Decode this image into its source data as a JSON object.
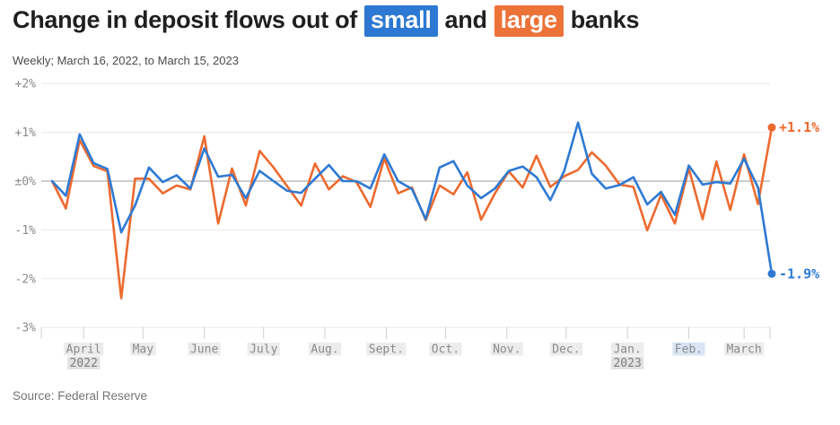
{
  "header": {
    "title_prefix": "Change in deposit flows out of",
    "chip_small": "small",
    "title_mid": "and",
    "chip_large": "large",
    "title_suffix": "banks",
    "subtitle": "Weekly; March 16, 2022, to March 15, 2023"
  },
  "source": "Source: Federal Reserve",
  "colors": {
    "small_line": "#2e7ad3",
    "large_line": "#ed6a2f",
    "small_chip": "#2d78d2",
    "large_chip": "#ec7238",
    "grid": "#e8e8e8",
    "zero_line": "#9b9b9b",
    "tick": "#cfcfcf",
    "axis_text": "#8a8a8a",
    "month_label_bg": "#ececec",
    "year_label_bg": "#e2e2e2"
  },
  "chart_data": {
    "type": "line",
    "title": "Change in deposit flows out of small and large banks",
    "subtitle": "Weekly; March 16, 2022, to March 15, 2023",
    "x_start_date": "2022-03-16",
    "x_end_date": "2023-03-15",
    "x_step_days": 7,
    "grid": true,
    "ylim": [
      -3,
      2
    ],
    "y_unit": "%",
    "y_ticks": [
      {
        "v": 2,
        "label": "+2%"
      },
      {
        "v": 1,
        "label": "+1%"
      },
      {
        "v": 0,
        "label": "±0%"
      },
      {
        "v": -1,
        "label": "-1%"
      },
      {
        "v": -2,
        "label": "-2%"
      },
      {
        "v": -3,
        "label": "-3%"
      }
    ],
    "x_ticks": [
      {
        "date": "2022-04-01",
        "label": "April",
        "year": "2022"
      },
      {
        "date": "2022-05-01",
        "label": "May"
      },
      {
        "date": "2022-06-01",
        "label": "June"
      },
      {
        "date": "2022-07-01",
        "label": "July"
      },
      {
        "date": "2022-08-01",
        "label": "Aug."
      },
      {
        "date": "2022-09-01",
        "label": "Sept."
      },
      {
        "date": "2022-10-01",
        "label": "Oct."
      },
      {
        "date": "2022-11-01",
        "label": "Nov."
      },
      {
        "date": "2022-12-01",
        "label": "Dec."
      },
      {
        "date": "2023-01-01",
        "label": "Jan.",
        "year": "2023"
      },
      {
        "date": "2023-02-01",
        "label": "Feb.",
        "bg": "#d9e5f5"
      },
      {
        "date": "2023-03-01",
        "label": "March"
      }
    ],
    "series": [
      {
        "name": "small banks",
        "color_key": "small_line",
        "end_label": "-1.9%",
        "values": [
          0.0,
          -0.3,
          0.96,
          0.37,
          0.25,
          -1.05,
          -0.5,
          0.28,
          -0.02,
          0.12,
          -0.15,
          0.67,
          0.09,
          0.13,
          -0.35,
          0.21,
          0.0,
          -0.2,
          -0.24,
          0.05,
          0.33,
          0.0,
          0.0,
          -0.15,
          0.55,
          0.0,
          -0.16,
          -0.78,
          0.28,
          0.41,
          -0.09,
          -0.35,
          -0.15,
          0.21,
          0.3,
          0.08,
          -0.39,
          0.21,
          1.2,
          0.15,
          -0.15,
          -0.08,
          0.08,
          -0.48,
          -0.22,
          -0.69,
          0.32,
          -0.07,
          -0.02,
          -0.05,
          0.46,
          -0.13,
          -1.9
        ]
      },
      {
        "name": "large banks",
        "color_key": "large_line",
        "end_label": "+1.1%",
        "values": [
          0.0,
          -0.56,
          0.84,
          0.31,
          0.2,
          -2.4,
          0.05,
          0.05,
          -0.25,
          -0.09,
          -0.17,
          0.92,
          -0.87,
          0.26,
          -0.5,
          0.62,
          0.28,
          -0.11,
          -0.5,
          0.36,
          -0.17,
          0.1,
          -0.02,
          -0.53,
          0.46,
          -0.25,
          -0.13,
          -0.8,
          -0.09,
          -0.27,
          0.18,
          -0.79,
          -0.25,
          0.2,
          -0.13,
          0.52,
          -0.12,
          0.1,
          0.23,
          0.59,
          0.32,
          -0.07,
          -0.12,
          -1.01,
          -0.28,
          -0.87,
          0.26,
          -0.78,
          0.4,
          -0.59,
          0.55,
          -0.47,
          1.1
        ]
      }
    ],
    "legend_position": "title-chips"
  }
}
